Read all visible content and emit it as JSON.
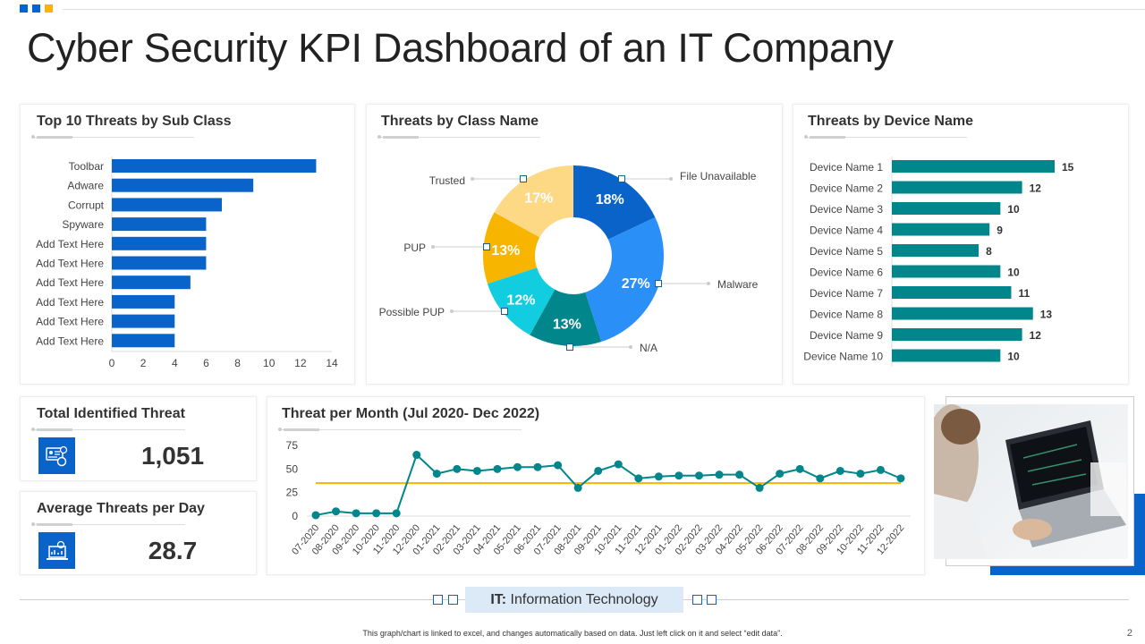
{
  "title": "Cyber Security KPI Dashboard of an IT Company",
  "accent_colors": {
    "primary": "#0a63c9",
    "teal": "#00868b",
    "yellow": "#f7b500"
  },
  "panels": {
    "sub_class": "Top 10 Threats by Sub Class",
    "class_name": "Threats by Class Name",
    "device": "Threats by Device  Name",
    "total": "Total Identified Threat",
    "average": "Average Threats per Day",
    "monthly": "Threat per Month (Jul 2020- Dec 2022)"
  },
  "kpis": {
    "total_value": "1,051",
    "total_icon": "id-card-security-icon",
    "average_value": "28.7",
    "average_icon": "laptop-chart-icon"
  },
  "chart_data": [
    {
      "type": "bar",
      "orientation": "horizontal",
      "categories": [
        "Toolbar",
        "Adware",
        "Corrupt",
        "Spyware",
        "Add Text Here",
        "Add Text Here",
        "Add Text Here",
        "Add Text Here",
        "Add Text Here",
        "Add Text Here"
      ],
      "values": [
        13,
        9,
        7,
        6,
        6,
        6,
        5,
        4,
        4,
        4
      ],
      "xlim": [
        0,
        14
      ],
      "xticks": [
        "0",
        "2",
        "4",
        "6",
        "8",
        "10",
        "12",
        "14"
      ],
      "color": "#0a63c9"
    },
    {
      "type": "pie",
      "donut": true,
      "labels": [
        "File Unavailable",
        "Malware",
        "N/A",
        "Possible PUP",
        "PUP",
        "Trusted"
      ],
      "values": [
        18,
        27,
        13,
        12,
        13,
        17
      ],
      "data_labels": [
        "18%",
        "27%",
        "13%",
        "12%",
        "13%",
        "17%"
      ],
      "colors": [
        "#0a63c9",
        "#2a8ff7",
        "#00868b",
        "#12cde0",
        "#f7b500",
        "#fdd985"
      ]
    },
    {
      "type": "bar",
      "orientation": "horizontal",
      "categories": [
        "Device Name 1",
        "Device Name 2",
        "Device Name 3",
        "Device Name 4",
        "Device Name 5",
        "Device Name 6",
        "Device Name 7",
        "Device Name 8",
        "Device Name 9",
        "Device Name 10"
      ],
      "values": [
        15,
        12,
        10,
        9,
        8,
        10,
        11,
        13,
        12,
        10
      ],
      "data_labels": [
        "15",
        "12",
        "10",
        "9",
        "8",
        "10",
        "11",
        "13",
        "12",
        "10"
      ],
      "xlim": [
        0,
        16
      ],
      "color": "#00868b"
    },
    {
      "type": "line",
      "x": [
        "07-2020",
        "08-2020",
        "09-2020",
        "10-2020",
        "11-2020",
        "12-2020",
        "01-2021",
        "02-2021",
        "03-2021",
        "04-2021",
        "05-2021",
        "06-2021",
        "07-2021",
        "08-2021",
        "09-2021",
        "10-2021",
        "11-2021",
        "12-2021",
        "01-2022",
        "02-2022",
        "03-2022",
        "04-2022",
        "05-2022",
        "06-2022",
        "07-2022",
        "08-2022",
        "09-2022",
        "10-2022",
        "11-2022",
        "12-2022"
      ],
      "series": [
        {
          "values": [
            1,
            5,
            3,
            3,
            3,
            65,
            45,
            50,
            48,
            50,
            52,
            52,
            54,
            30,
            48,
            55,
            40,
            42,
            43,
            43,
            44,
            44,
            30,
            45,
            50,
            40,
            48,
            45,
            49,
            40
          ],
          "color": "#00868b"
        },
        {
          "values": "constant",
          "level": 35,
          "color": "#f7b500"
        }
      ],
      "ylim": [
        0,
        75
      ],
      "yticks": [
        "0",
        "25",
        "50",
        "75"
      ],
      "grid": false
    }
  ],
  "footer": {
    "label_bold": "IT:",
    "label_text": " Information Technology",
    "note": "This graph/chart is linked to excel, and changes automatically based on data. Just left click on it and select “edit data”.",
    "page": "2"
  },
  "photo": "person-using-laptop-image"
}
